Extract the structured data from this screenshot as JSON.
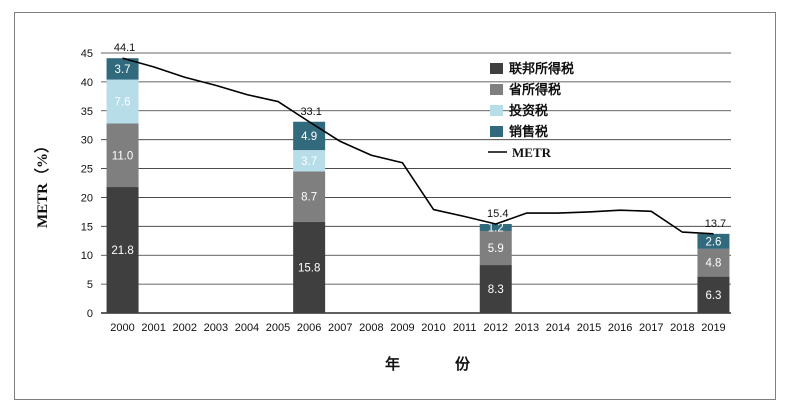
{
  "chart_data": {
    "type": "bar",
    "subtype": "stacked-bar-with-line",
    "title": "",
    "xlabel_chars": [
      "年",
      "份"
    ],
    "ylabel": "METR（%）",
    "ylim": [
      0,
      45
    ],
    "yticks": [
      0,
      5,
      10,
      15,
      20,
      25,
      30,
      35,
      40,
      45
    ],
    "grid": true,
    "legend_position": "top-right",
    "categories": [
      "2000",
      "2001",
      "2002",
      "2003",
      "2004",
      "2005",
      "2006",
      "2007",
      "2008",
      "2009",
      "2010",
      "2011",
      "2012",
      "2013",
      "2014",
      "2015",
      "2016",
      "2017",
      "2018",
      "2019"
    ],
    "series": [
      {
        "name": "联邦所得税",
        "color": "#3f3f3f",
        "values": {
          "2000": 21.8,
          "2006": 15.8,
          "2012": 8.3,
          "2019": 6.3
        }
      },
      {
        "name": "省所得税",
        "color": "#7f7f7f",
        "values": {
          "2000": 11.0,
          "2006": 8.7,
          "2012": 5.9,
          "2019": 4.8
        }
      },
      {
        "name": "投资税",
        "color": "#b7dde8",
        "values": {
          "2000": 7.6,
          "2006": 3.7,
          "2012": 0,
          "2019": 0
        }
      },
      {
        "name": "销售税",
        "color": "#31697d",
        "values": {
          "2000": 3.7,
          "2006": 4.9,
          "2012": 1.2,
          "2019": 2.6
        }
      }
    ],
    "segment_labels": {
      "2000": [
        "21.8",
        "11.0",
        "7.6",
        "3.7"
      ],
      "2006": [
        "15.8",
        "8.7",
        "3.7",
        "4.9"
      ],
      "2012": [
        "8.3",
        "5.9",
        "",
        "1.2"
      ],
      "2019": [
        "6.3",
        "4.8",
        "",
        "2.6"
      ]
    },
    "totals": {
      "2000": "44.1",
      "2006": "33.1",
      "2012": "15.4",
      "2019": "13.7"
    },
    "line": {
      "name": "METR",
      "color": "#000000",
      "values": [
        44.1,
        42.6,
        40.8,
        39.4,
        37.8,
        36.6,
        33.1,
        29.7,
        27.3,
        26.0,
        17.9,
        16.7,
        15.4,
        17.3,
        17.3,
        17.5,
        17.8,
        17.6,
        14.0,
        13.7
      ]
    }
  }
}
